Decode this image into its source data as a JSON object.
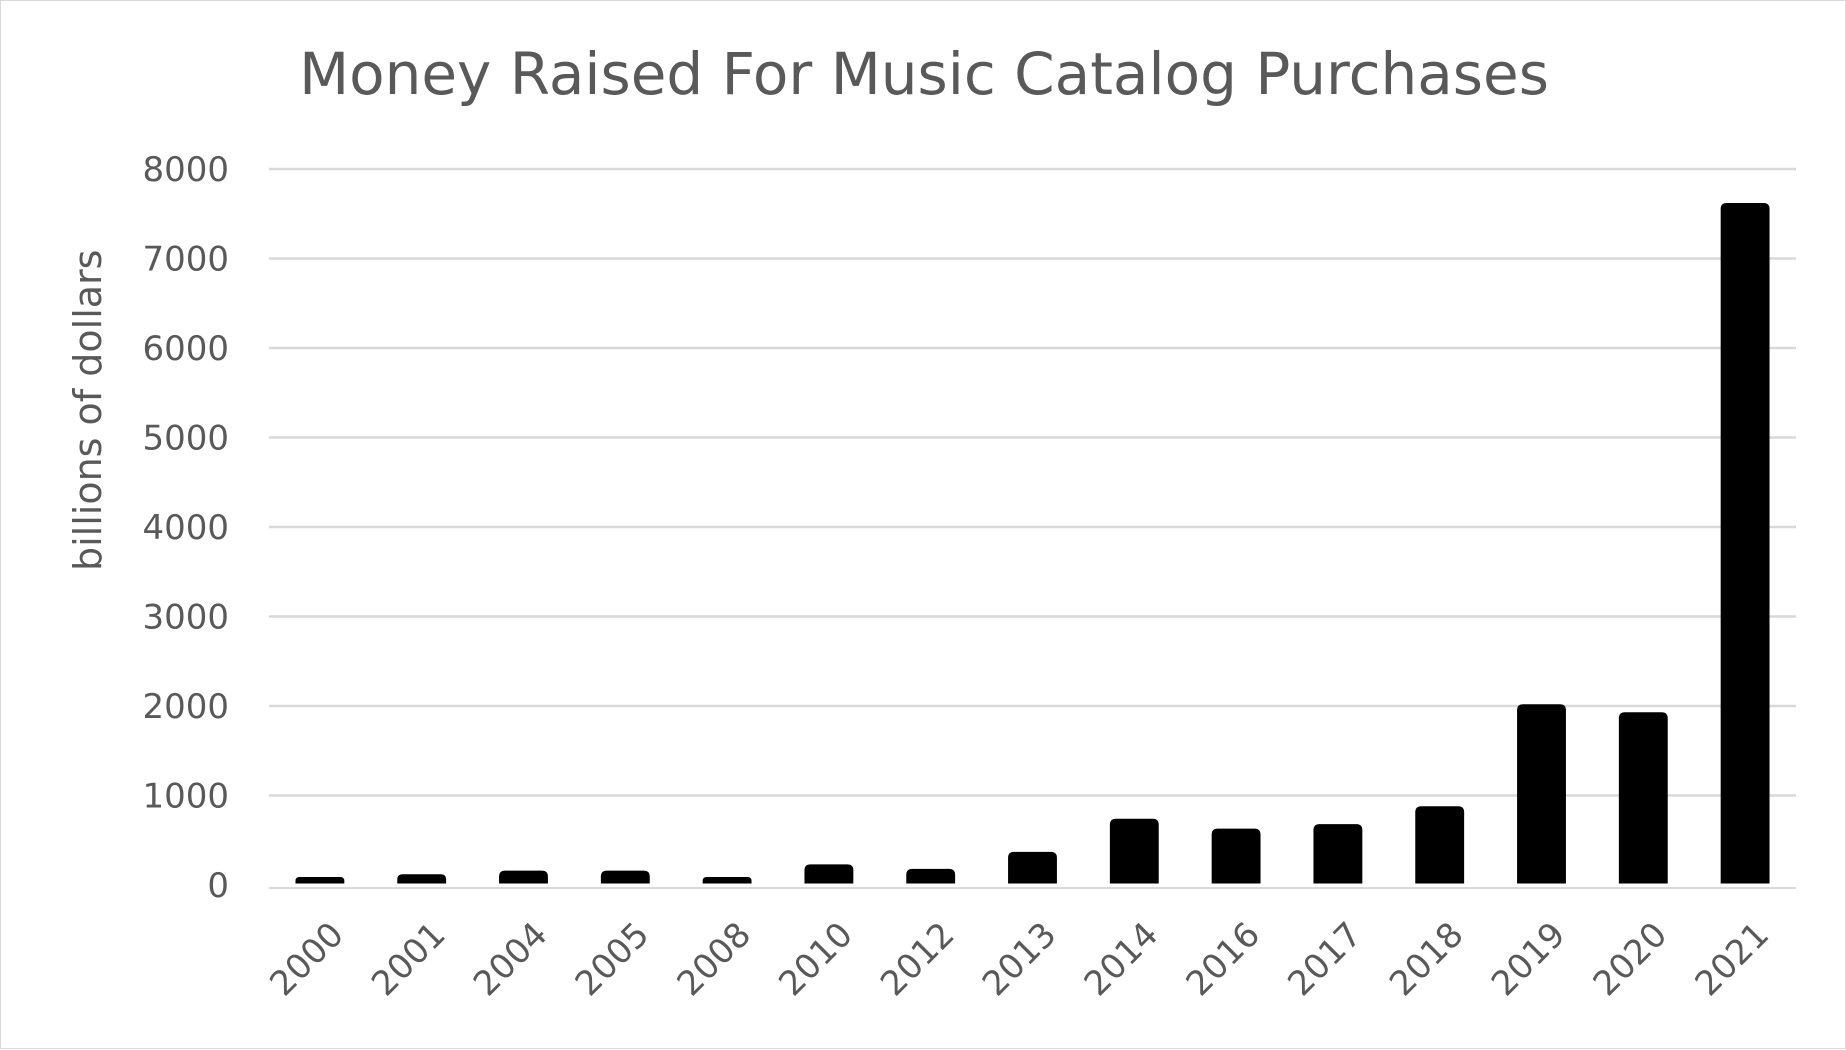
{
  "chart_data": {
    "type": "bar",
    "title": "Money Raised For Music Catalog Purchases",
    "xlabel": "",
    "ylabel": "billions of dollars",
    "categories": [
      "2000",
      "2001",
      "2004",
      "2005",
      "2008",
      "2010",
      "2012",
      "2013",
      "2014",
      "2016",
      "2017",
      "2018",
      "2019",
      "2020",
      "2021"
    ],
    "values": [
      90,
      120,
      160,
      160,
      90,
      230,
      180,
      370,
      740,
      630,
      680,
      880,
      2020,
      1930,
      7620
    ],
    "ylim": [
      0,
      8000
    ],
    "yticks": [
      "0",
      "1000",
      "2000",
      "3000",
      "4000",
      "5000",
      "6000",
      "7000",
      "8000"
    ],
    "grid": true,
    "legend": "none",
    "bar_color": "#000000",
    "grid_color": "#d9d9d9",
    "text_color": "#595959"
  }
}
